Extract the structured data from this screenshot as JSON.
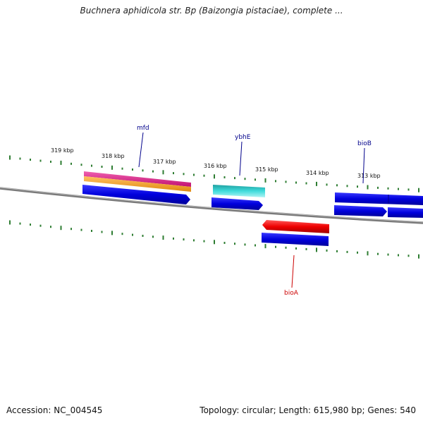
{
  "title": "Buchnera aphidicola str. Bp (Baizongia pistaciae), complete ...",
  "footer": {
    "accession": "Accession: NC_004545",
    "summary": "Topology: circular; Length: 615,980 bp; Genes: 540"
  },
  "scale_labels": [
    "319 kbp",
    "318 kbp",
    "317 kbp",
    "316 kbp",
    "315 kbp",
    "314 kbp",
    "313 kbp"
  ],
  "genes": [
    {
      "name": "mfd",
      "color": "#00008b"
    },
    {
      "name": "ybhE",
      "color": "#00008b"
    },
    {
      "name": "bioB",
      "color": "#00008b"
    },
    {
      "name": "bioA",
      "color": "#cc0000"
    }
  ],
  "colors": {
    "backbone": "#808080",
    "ticks": "#2e7d32",
    "cds": "#0000dd",
    "forward_feature_pink": "#e8288a",
    "forward_feature_orange": "#f5a623",
    "ybhE_feature": "#22c6c6",
    "bioA_feature": "#ee0000"
  }
}
